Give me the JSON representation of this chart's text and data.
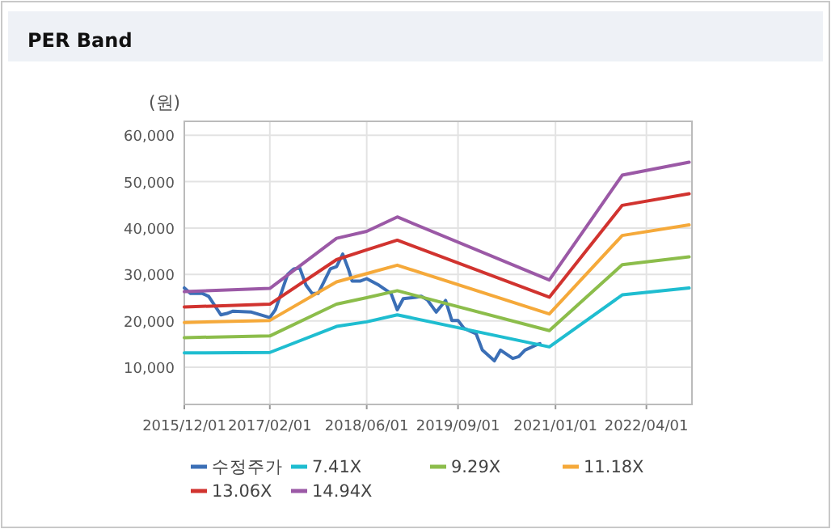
{
  "chart_data": {
    "type": "line",
    "title": "PER Band",
    "ylabel": "(원)",
    "grid": true,
    "legend": "bottom",
    "xlim": [
      "2015-12-01",
      "2022-11-15"
    ],
    "xticks": [
      {
        "value": "2015-12-01",
        "label": "2015/12/01"
      },
      {
        "value": "2017-02-01",
        "label": "2017/02/01"
      },
      {
        "value": "2018-06-01",
        "label": "2018/06/01"
      },
      {
        "value": "2019-09-01",
        "label": "2019/09/01"
      },
      {
        "value": "2021-01-01",
        "label": "2021/01/01"
      },
      {
        "value": "2022-04-01",
        "label": "2022/04/01"
      }
    ],
    "ylim": [
      2000,
      63000
    ],
    "yticks": [
      {
        "value": 10000,
        "label": "10,000"
      },
      {
        "value": 20000,
        "label": "20,000"
      },
      {
        "value": 30000,
        "label": "30,000"
      },
      {
        "value": 40000,
        "label": "40,000"
      },
      {
        "value": 50000,
        "label": "50,000"
      },
      {
        "value": 60000,
        "label": "60,000"
      }
    ],
    "series": [
      {
        "name": "수정주가",
        "color": "#3b6fb6",
        "x": [
          "2015-12-01",
          "2016-01-01",
          "2016-03-01",
          "2016-04-01",
          "2016-06-01",
          "2016-07-01",
          "2016-08-01",
          "2016-11-01",
          "2017-02-01",
          "2017-03-01",
          "2017-05-01",
          "2017-06-01",
          "2017-07-01",
          "2017-08-01",
          "2017-09-01",
          "2017-10-01",
          "2017-12-01",
          "2018-01-01",
          "2018-02-01",
          "2018-03-01",
          "2018-03-20",
          "2018-05-01",
          "2018-06-01",
          "2018-08-01",
          "2018-10-01",
          "2018-11-01",
          "2018-12-01",
          "2019-02-01",
          "2019-03-01",
          "2019-04-01",
          "2019-05-15",
          "2019-07-01",
          "2019-08-01",
          "2019-09-01",
          "2019-10-01",
          "2019-12-01",
          "2020-01-01",
          "2020-03-01",
          "2020-04-01",
          "2020-06-01",
          "2020-07-01",
          "2020-08-01",
          "2020-10-01",
          "2020-10-15"
        ],
        "values": [
          27100,
          25900,
          25900,
          25300,
          21300,
          21600,
          22100,
          21900,
          20700,
          22400,
          30000,
          31200,
          31400,
          27700,
          25900,
          25900,
          31200,
          31700,
          34400,
          31200,
          28600,
          28600,
          29100,
          27700,
          25900,
          22400,
          24800,
          25100,
          25300,
          24500,
          21900,
          24400,
          20100,
          20100,
          18400,
          17200,
          13700,
          11400,
          13700,
          11900,
          12300,
          13700,
          14900,
          15100
        ]
      },
      {
        "name": "7.41X",
        "color": "#1fbdd0",
        "x": [
          "2015-12-01",
          "2017-02-01",
          "2018-01-01",
          "2018-06-01",
          "2018-11-01",
          "2020-12-01",
          "2021-12-01",
          "2022-11-01"
        ],
        "values": [
          13100,
          13200,
          18800,
          19800,
          21300,
          14400,
          25600,
          27100
        ]
      },
      {
        "name": "9.29X",
        "color": "#8cbd4b",
        "x": [
          "2015-12-01",
          "2017-02-01",
          "2018-01-01",
          "2018-06-01",
          "2018-11-01",
          "2020-12-01",
          "2021-12-01",
          "2022-11-01"
        ],
        "values": [
          16400,
          16750,
          23600,
          25000,
          26500,
          17900,
          32100,
          33800
        ]
      },
      {
        "name": "11.18X",
        "color": "#f5a93a",
        "x": [
          "2015-12-01",
          "2017-02-01",
          "2018-01-01",
          "2018-06-01",
          "2018-11-01",
          "2020-12-01",
          "2021-12-01",
          "2022-11-01"
        ],
        "values": [
          19650,
          20100,
          28400,
          30200,
          32000,
          21500,
          38400,
          40700
        ]
      },
      {
        "name": "13.06X",
        "color": "#d1332f",
        "x": [
          "2015-12-01",
          "2017-02-01",
          "2018-01-01",
          "2018-06-01",
          "2018-11-01",
          "2020-12-01",
          "2021-12-01",
          "2022-11-01"
        ],
        "values": [
          23000,
          23600,
          33200,
          35300,
          37400,
          25100,
          44900,
          47400
        ]
      },
      {
        "name": "14.94X",
        "color": "#9b59a6",
        "x": [
          "2015-12-01",
          "2017-02-01",
          "2018-01-01",
          "2018-06-01",
          "2018-11-01",
          "2020-12-01",
          "2021-12-01",
          "2022-11-01"
        ],
        "values": [
          26300,
          27000,
          37800,
          39300,
          42400,
          28800,
          51400,
          54200
        ]
      }
    ]
  }
}
